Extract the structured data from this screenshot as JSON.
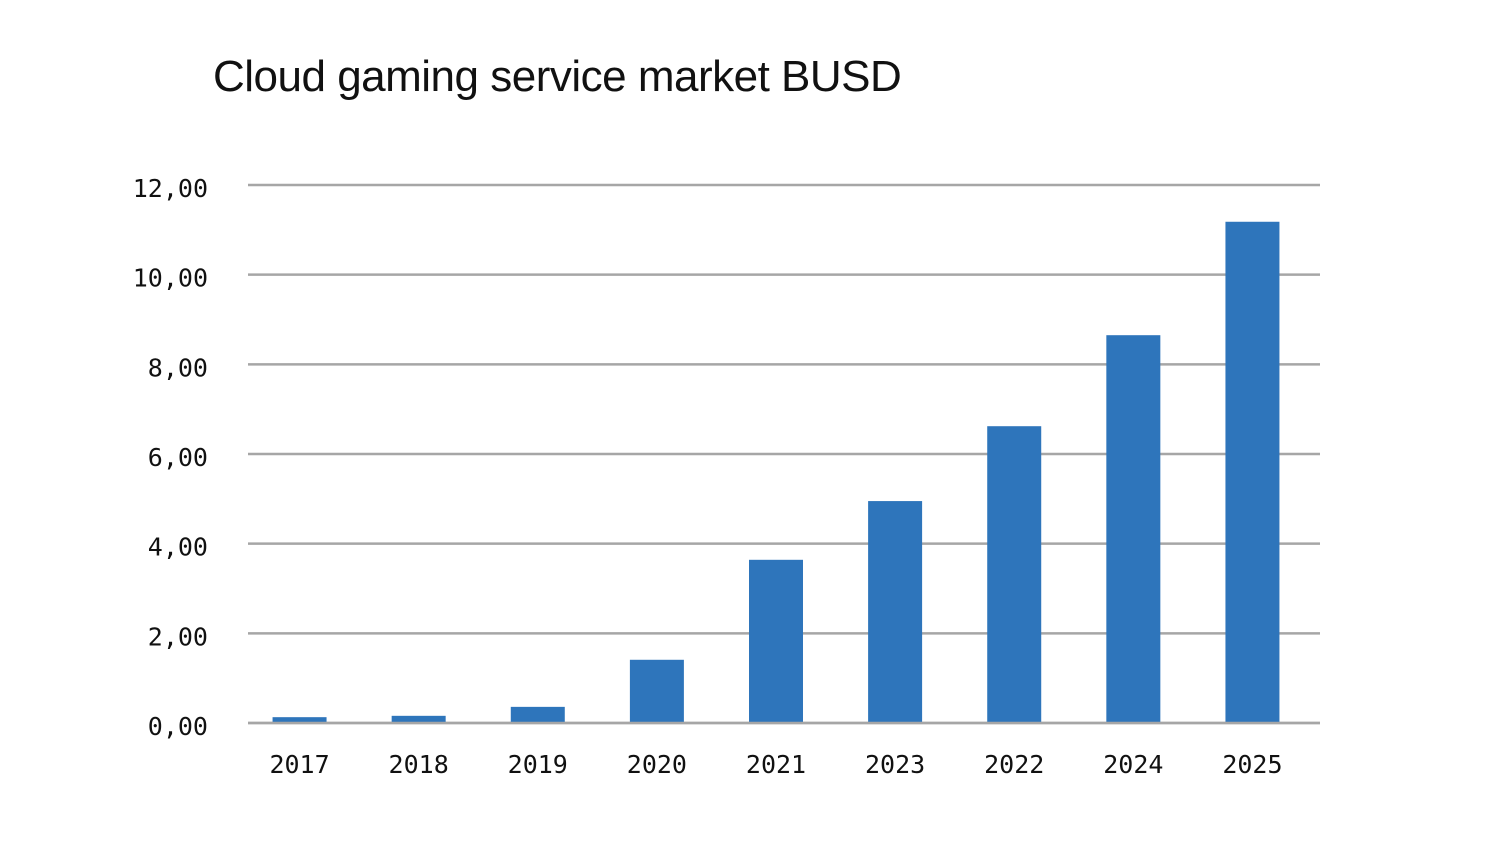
{
  "chart_data": {
    "type": "bar",
    "title": "Cloud gaming service market BUSD",
    "categories": [
      "2017",
      "2018",
      "2019",
      "2020",
      "2021",
      "2023",
      "2022",
      "2024",
      "2025"
    ],
    "values": [
      0.13,
      0.16,
      0.36,
      1.41,
      3.64,
      4.95,
      6.62,
      8.65,
      11.18
    ],
    "ylim": [
      0,
      12
    ],
    "yticks": [
      "0,00",
      "2,00",
      "4,00",
      "6,00",
      "8,00",
      "10,00",
      "12,00"
    ],
    "grid": true,
    "bar_color": "#2e75bb",
    "grid_color": "#a6a6a6",
    "xlabel": "",
    "ylabel": ""
  }
}
